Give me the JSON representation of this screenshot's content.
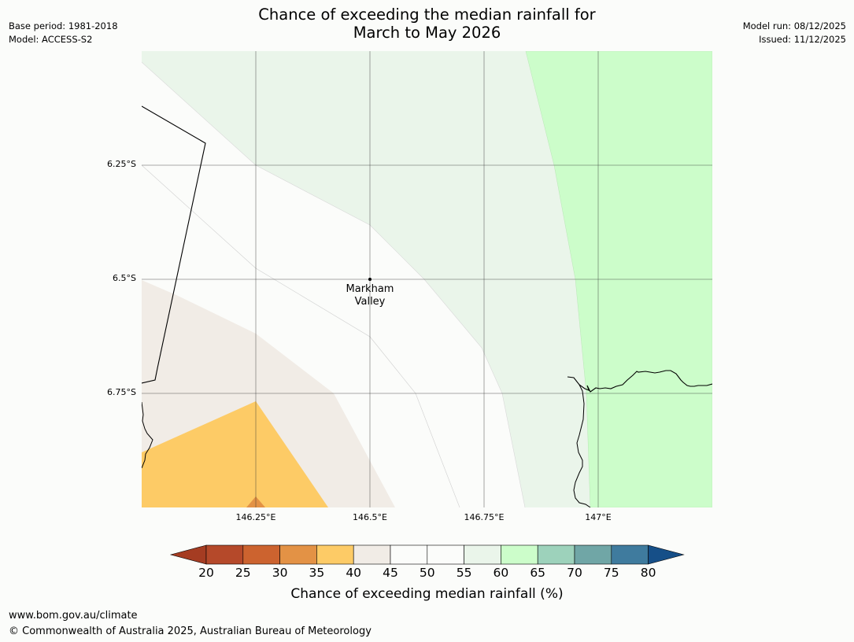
{
  "header": {
    "title_line1": "Chance of exceeding the median rainfall for",
    "title_line2": "March to May 2026",
    "base_period": "Base period: 1981-2018",
    "model": "Model: ACCESS-S2",
    "model_run": "Model run: 08/12/2025",
    "issued": "Issued: 11/12/2025"
  },
  "map": {
    "latitude_labels": [
      "6.25°S",
      "6.5°S",
      "6.75°S"
    ],
    "longitude_labels": [
      "146.25°E",
      "146.5°E",
      "146.75°E",
      "147°E"
    ],
    "place_label": "Markham\nValley"
  },
  "colorbar": {
    "ticks": [
      "20",
      "25",
      "30",
      "35",
      "40",
      "45",
      "50",
      "55",
      "60",
      "65",
      "70",
      "75",
      "80"
    ],
    "colors": [
      "#a53c22",
      "#b5492a",
      "#cc632f",
      "#e39245",
      "#fdcb66",
      "#f1ece6",
      "#fbfcfa",
      "#fbfcfa",
      "#eaf5ea",
      "#ccfdca",
      "#9dd2bb",
      "#70a6a6",
      "#3f7b9e",
      "#164f88"
    ],
    "title": "Chance of exceeding median rainfall (%)"
  },
  "footer": {
    "url": "www.bom.gov.au/climate",
    "copyright": "© Commonwealth of Australia 2025, Australian Bureau of Meteorology"
  }
}
